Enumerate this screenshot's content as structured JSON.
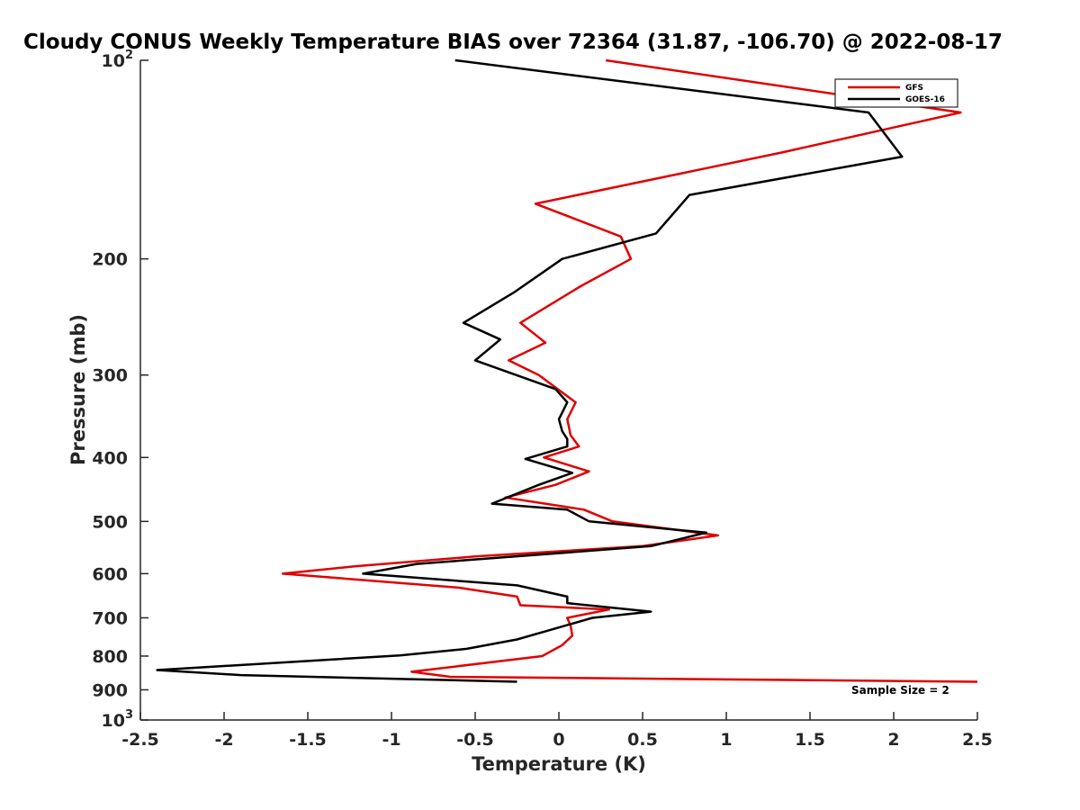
{
  "chart_data": {
    "type": "line",
    "title": "Cloudy CONUS Weekly Temperature BIAS over 72364 (31.87, -106.70) @ 2022-08-17",
    "xlabel": "Temperature (K)",
    "ylabel": "Pressure (mb)",
    "xlim": [
      -2.5,
      2.5
    ],
    "ylim": [
      100,
      1000
    ],
    "yscale": "log",
    "yaxis_reversed": true,
    "grid": false,
    "legend_position": "top-right",
    "x_ticks": [
      -2.5,
      -2,
      -1.5,
      -1,
      -0.5,
      0,
      0.5,
      1,
      1.5,
      2,
      2.5
    ],
    "x_tick_labels": [
      "-2.5",
      "-2",
      "-1.5",
      "-1",
      "-0.5",
      "0",
      "0.5",
      "1",
      "1.5",
      "2",
      "2.5"
    ],
    "y_ticks": [
      100,
      200,
      300,
      400,
      500,
      600,
      700,
      800,
      900,
      1000
    ],
    "y_tick_labels": [
      {
        "base": "10",
        "exp": "2"
      },
      {
        "base": "200",
        "exp": ""
      },
      {
        "base": "300",
        "exp": ""
      },
      {
        "base": "400",
        "exp": ""
      },
      {
        "base": "500",
        "exp": ""
      },
      {
        "base": "600",
        "exp": ""
      },
      {
        "base": "700",
        "exp": ""
      },
      {
        "base": "800",
        "exp": ""
      },
      {
        "base": "900",
        "exp": ""
      },
      {
        "base": "10",
        "exp": "3"
      }
    ],
    "series": [
      {
        "name": "GFS",
        "color": "#e00000",
        "points": [
          {
            "x": 0.28,
            "y": 100
          },
          {
            "x": 2.4,
            "y": 120
          },
          {
            "x": 1.33,
            "y": 138
          },
          {
            "x": -0.14,
            "y": 165
          },
          {
            "x": 0.37,
            "y": 185
          },
          {
            "x": 0.43,
            "y": 200
          },
          {
            "x": 0.13,
            "y": 220
          },
          {
            "x": -0.23,
            "y": 250
          },
          {
            "x": -0.08,
            "y": 268
          },
          {
            "x": -0.3,
            "y": 285
          },
          {
            "x": -0.12,
            "y": 300
          },
          {
            "x": 0.1,
            "y": 330
          },
          {
            "x": 0.05,
            "y": 350
          },
          {
            "x": 0.07,
            "y": 370
          },
          {
            "x": 0.12,
            "y": 385
          },
          {
            "x": -0.09,
            "y": 400
          },
          {
            "x": 0.18,
            "y": 420
          },
          {
            "x": -0.02,
            "y": 440
          },
          {
            "x": -0.32,
            "y": 460
          },
          {
            "x": 0.15,
            "y": 480
          },
          {
            "x": 0.32,
            "y": 500
          },
          {
            "x": 0.95,
            "y": 525
          },
          {
            "x": 0.5,
            "y": 545
          },
          {
            "x": -0.5,
            "y": 565
          },
          {
            "x": -1.22,
            "y": 585
          },
          {
            "x": -1.65,
            "y": 600
          },
          {
            "x": -0.6,
            "y": 630
          },
          {
            "x": -0.25,
            "y": 650
          },
          {
            "x": -0.23,
            "y": 670
          },
          {
            "x": 0.3,
            "y": 680
          },
          {
            "x": 0.05,
            "y": 700
          },
          {
            "x": 0.07,
            "y": 720
          },
          {
            "x": 0.08,
            "y": 745
          },
          {
            "x": 0.02,
            "y": 770
          },
          {
            "x": -0.1,
            "y": 800
          },
          {
            "x": -0.88,
            "y": 845
          },
          {
            "x": -0.65,
            "y": 860
          },
          {
            "x": 2.5,
            "y": 875
          }
        ]
      },
      {
        "name": "GOES-16",
        "color": "#000000",
        "points": [
          {
            "x": -0.62,
            "y": 100
          },
          {
            "x": 1.85,
            "y": 120
          },
          {
            "x": 2.05,
            "y": 140
          },
          {
            "x": 0.78,
            "y": 160
          },
          {
            "x": 0.58,
            "y": 183
          },
          {
            "x": 0.02,
            "y": 200
          },
          {
            "x": -0.27,
            "y": 225
          },
          {
            "x": -0.57,
            "y": 250
          },
          {
            "x": -0.35,
            "y": 265
          },
          {
            "x": -0.5,
            "y": 285
          },
          {
            "x": -0.02,
            "y": 315
          },
          {
            "x": 0.05,
            "y": 330
          },
          {
            "x": 0.0,
            "y": 350
          },
          {
            "x": 0.02,
            "y": 365
          },
          {
            "x": 0.05,
            "y": 375
          },
          {
            "x": 0.05,
            "y": 385
          },
          {
            "x": -0.2,
            "y": 402
          },
          {
            "x": 0.08,
            "y": 422
          },
          {
            "x": -0.12,
            "y": 440
          },
          {
            "x": -0.4,
            "y": 470
          },
          {
            "x": 0.05,
            "y": 480
          },
          {
            "x": 0.18,
            "y": 500
          },
          {
            "x": 0.88,
            "y": 520
          },
          {
            "x": 0.55,
            "y": 545
          },
          {
            "x": -0.85,
            "y": 580
          },
          {
            "x": -1.17,
            "y": 600
          },
          {
            "x": -0.25,
            "y": 625
          },
          {
            "x": 0.05,
            "y": 650
          },
          {
            "x": 0.05,
            "y": 665
          },
          {
            "x": 0.55,
            "y": 685
          },
          {
            "x": 0.2,
            "y": 700
          },
          {
            "x": -0.25,
            "y": 755
          },
          {
            "x": -0.55,
            "y": 780
          },
          {
            "x": -0.95,
            "y": 798
          },
          {
            "x": -2.4,
            "y": 840
          },
          {
            "x": -1.9,
            "y": 855
          },
          {
            "x": -0.25,
            "y": 875
          }
        ]
      }
    ],
    "annotations": [
      {
        "text": "Sample Size = 2",
        "position": "bottom-right"
      }
    ]
  }
}
